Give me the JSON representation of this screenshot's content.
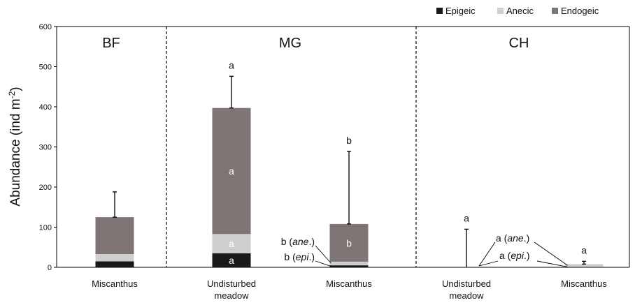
{
  "chart_data": {
    "type": "bar",
    "stacked": true,
    "ylabel_text": "Abundance (ind m",
    "ylabel_sup": "-2",
    "ylabel_close": ")",
    "ylim": [
      0,
      600
    ],
    "yticks": [
      0,
      100,
      200,
      300,
      400,
      500,
      600
    ],
    "grid": false,
    "legend_position": "top-right",
    "colors": {
      "Epigeic": "#1a1a1a",
      "Anecic": "#cfcfcf",
      "Endogeic": "#7f7575"
    },
    "regions": [
      {
        "id": "BF",
        "label": "BF"
      },
      {
        "id": "MG",
        "label": "MG"
      },
      {
        "id": "CH",
        "label": "CH"
      }
    ],
    "groups": [
      {
        "region": "BF",
        "label_lines": [
          "Miscanthus"
        ],
        "Epigeic": 15,
        "Anecic": 18,
        "Endogeic": 92,
        "error_top": 188,
        "top_label": ""
      },
      {
        "region": "MG",
        "label_lines": [
          "Undisturbed",
          "meadow"
        ],
        "Epigeic": 35,
        "Anecic": 48,
        "Endogeic": 314,
        "error_top": 476,
        "top_label": "a"
      },
      {
        "region": "MG",
        "label_lines": [
          "Miscanthus"
        ],
        "Epigeic": 5,
        "Anecic": 9,
        "Endogeic": 94,
        "error_top": 289,
        "top_label": "b"
      },
      {
        "region": "CH",
        "label_lines": [
          "Undisturbed",
          "meadow"
        ],
        "Epigeic": 0,
        "Anecic": 0,
        "Endogeic": 0,
        "error_top": 95,
        "top_label": "a"
      },
      {
        "region": "CH",
        "label_lines": [
          "Miscanthus"
        ],
        "Epigeic": 1,
        "Anecic": 7,
        "Endogeic": 0,
        "error_top": 15,
        "top_label": "a"
      }
    ],
    "annotations": [
      {
        "id": "mg_um_endo",
        "text": "a"
      },
      {
        "id": "mg_um_ane",
        "text": "a"
      },
      {
        "id": "mg_um_epi",
        "text": "a"
      },
      {
        "id": "mg_mis_endo",
        "text": "b"
      },
      {
        "id": "mg_mis_ane",
        "text": "b (",
        "em": "ane",
        "tail": ".)"
      },
      {
        "id": "mg_mis_epi",
        "text": "b (",
        "em": "epi",
        "tail": ".)"
      },
      {
        "id": "ch_ane",
        "text": "a (",
        "em": "ane",
        "tail": ".)"
      },
      {
        "id": "ch_epi",
        "text": "a (",
        "em": "epi",
        "tail": ".)"
      }
    ],
    "legend": [
      "Epigeic",
      "Anecic",
      "Endogeic"
    ]
  }
}
